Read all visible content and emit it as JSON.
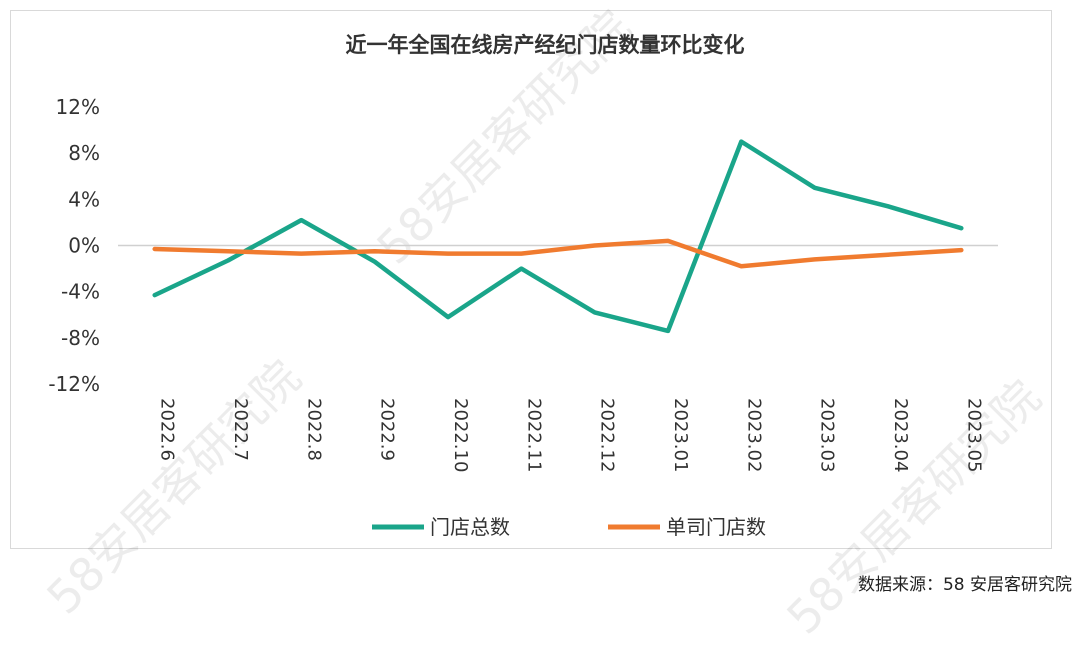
{
  "chart_data": {
    "type": "line",
    "title": "近一年全国在线房产经纪门店数量环比变化",
    "categories": [
      "2022.6",
      "2022.7",
      "2022.8",
      "2022.9",
      "2022.10",
      "2022.11",
      "2022.12",
      "2023.01",
      "2023.02",
      "2023.03",
      "2023.04",
      "2023.05"
    ],
    "series": [
      {
        "name": "门店总数",
        "color": "#1aa58a",
        "values": [
          -4.3,
          -1.3,
          2.2,
          -1.4,
          -6.2,
          -2.0,
          -5.8,
          -7.4,
          9.0,
          5.0,
          3.4,
          1.5
        ]
      },
      {
        "name": "单司门店数",
        "color": "#f07b2f",
        "values": [
          -0.3,
          -0.5,
          -0.7,
          -0.5,
          -0.7,
          -0.7,
          0.0,
          0.4,
          -1.8,
          -1.2,
          -0.8,
          -0.4
        ]
      }
    ],
    "y_ticks": [
      "12%",
      "8%",
      "4%",
      "0%",
      "-4%",
      "-8%",
      "-12%"
    ],
    "ylim": [
      -12,
      12
    ],
    "grid": false,
    "zero_line": true,
    "legend_position": "bottom"
  },
  "source": "数据来源：58 安居客研究院",
  "watermark_text": "58安居客研究院"
}
